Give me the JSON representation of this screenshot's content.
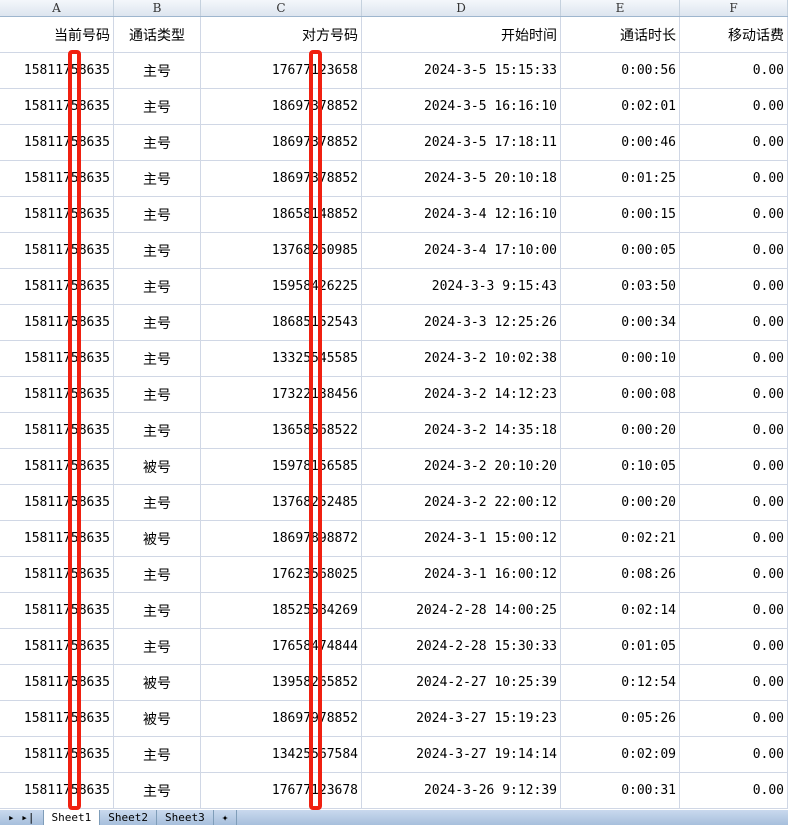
{
  "columns": [
    "A",
    "B",
    "C",
    "D",
    "E",
    "F"
  ],
  "headers": [
    "当前号码",
    "通话类型",
    "对方号码",
    "开始时间",
    "通话时长",
    "移动话费"
  ],
  "rows": [
    [
      "15811758635",
      "主号",
      "17677123658",
      "2024-3-5 15:15:33",
      "0:00:56",
      "0.00"
    ],
    [
      "15811758635",
      "主号",
      "18697378852",
      "2024-3-5 16:16:10",
      "0:02:01",
      "0.00"
    ],
    [
      "15811758635",
      "主号",
      "18697378852",
      "2024-3-5 17:18:11",
      "0:00:46",
      "0.00"
    ],
    [
      "15811758635",
      "主号",
      "18697378852",
      "2024-3-5 20:10:18",
      "0:01:25",
      "0.00"
    ],
    [
      "15811758635",
      "主号",
      "18658148852",
      "2024-3-4 12:16:10",
      "0:00:15",
      "0.00"
    ],
    [
      "15811758635",
      "主号",
      "13768250985",
      "2024-3-4 17:10:00",
      "0:00:05",
      "0.00"
    ],
    [
      "15811758635",
      "主号",
      "15958426225",
      "2024-3-3 9:15:43",
      "0:03:50",
      "0.00"
    ],
    [
      "15811758635",
      "主号",
      "18685152543",
      "2024-3-3 12:25:26",
      "0:00:34",
      "0.00"
    ],
    [
      "15811758635",
      "主号",
      "13325545585",
      "2024-3-2 10:02:38",
      "0:00:10",
      "0.00"
    ],
    [
      "15811758635",
      "主号",
      "17322138456",
      "2024-3-2 14:12:23",
      "0:00:08",
      "0.00"
    ],
    [
      "15811758635",
      "主号",
      "13658568522",
      "2024-3-2 14:35:18",
      "0:00:20",
      "0.00"
    ],
    [
      "15811758635",
      "被号",
      "15978156585",
      "2024-3-2 20:10:20",
      "0:10:05",
      "0.00"
    ],
    [
      "15811758635",
      "主号",
      "13768252485",
      "2024-3-2 22:00:12",
      "0:00:20",
      "0.00"
    ],
    [
      "15811758635",
      "被号",
      "18697898872",
      "2024-3-1 15:00:12",
      "0:02:21",
      "0.00"
    ],
    [
      "15811758635",
      "主号",
      "17623568025",
      "2024-3-1 16:00:12",
      "0:08:26",
      "0.00"
    ],
    [
      "15811758635",
      "主号",
      "18525584269",
      "2024-2-28 14:00:25",
      "0:02:14",
      "0.00"
    ],
    [
      "15811758635",
      "主号",
      "17658474844",
      "2024-2-28 15:30:33",
      "0:01:05",
      "0.00"
    ],
    [
      "15811758635",
      "被号",
      "13958265852",
      "2024-2-27 10:25:39",
      "0:12:54",
      "0.00"
    ],
    [
      "15811758635",
      "被号",
      "18697978852",
      "2024-3-27 15:19:23",
      "0:05:26",
      "0.00"
    ],
    [
      "15811758635",
      "主号",
      "13425567584",
      "2024-3-27 19:14:14",
      "0:02:09",
      "0.00"
    ],
    [
      "15811758635",
      "主号",
      "17677123678",
      "2024-3-26 9:12:39",
      "0:00:31",
      "0.00"
    ]
  ],
  "sheet_tabs": [
    "Sheet1",
    "Sheet2",
    "Sheet3"
  ],
  "active_tab": "Sheet1",
  "redaction_color": "#f02010"
}
